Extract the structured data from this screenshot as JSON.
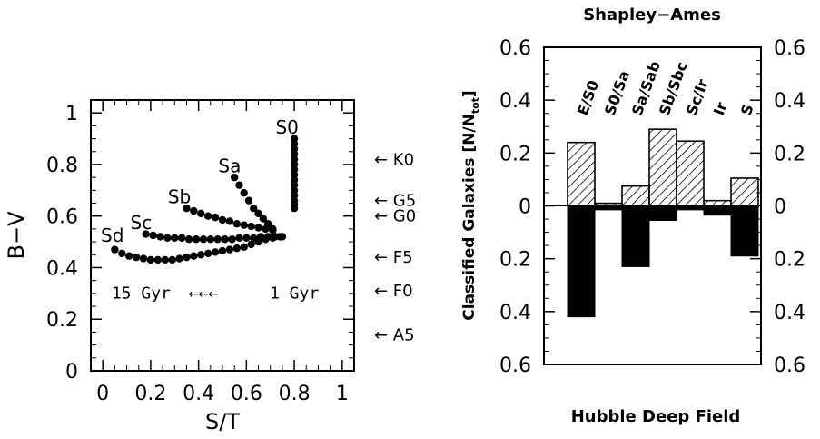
{
  "chart_data": [
    {
      "type": "scatter",
      "xlabel": "S/T",
      "ylabel": "B−V",
      "xlim": [
        -0.05,
        1.05
      ],
      "ylim": [
        0,
        1.05
      ],
      "x_ticks": [
        "0",
        "0.2",
        "0.4",
        "0.6",
        "0.8",
        "1"
      ],
      "y_ticks": [
        "0",
        "0.2",
        "0.4",
        "0.6",
        "0.8",
        "1"
      ],
      "x_tick_values": [
        0,
        0.2,
        0.4,
        0.6,
        0.8,
        1
      ],
      "y_tick_values": [
        0,
        0.2,
        0.4,
        0.6,
        0.8,
        1
      ],
      "series": [
        {
          "name": "S0",
          "x": [
            0.8,
            0.8,
            0.8,
            0.8,
            0.8,
            0.8,
            0.8,
            0.8,
            0.8,
            0.8,
            0.8,
            0.8,
            0.8,
            0.8,
            0.8
          ],
          "y": [
            0.9,
            0.88,
            0.86,
            0.84,
            0.82,
            0.8,
            0.78,
            0.76,
            0.74,
            0.72,
            0.7,
            0.68,
            0.66,
            0.645,
            0.63
          ]
        },
        {
          "name": "Sa",
          "x": [
            0.55,
            0.57,
            0.59,
            0.61,
            0.63,
            0.65,
            0.67,
            0.69,
            0.71
          ],
          "y": [
            0.75,
            0.72,
            0.69,
            0.66,
            0.63,
            0.61,
            0.59,
            0.57,
            0.55
          ]
        },
        {
          "name": "Sb",
          "x": [
            0.35,
            0.38,
            0.41,
            0.44,
            0.47,
            0.5,
            0.53,
            0.56,
            0.59,
            0.62,
            0.65,
            0.68,
            0.71
          ],
          "y": [
            0.63,
            0.62,
            0.61,
            0.6,
            0.595,
            0.585,
            0.58,
            0.57,
            0.565,
            0.56,
            0.555,
            0.55,
            0.545
          ]
        },
        {
          "name": "Sc",
          "x": [
            0.18,
            0.21,
            0.24,
            0.27,
            0.3,
            0.33,
            0.36,
            0.39,
            0.42,
            0.45,
            0.48,
            0.51,
            0.54,
            0.57,
            0.6,
            0.63,
            0.66,
            0.69,
            0.72,
            0.75
          ],
          "y": [
            0.53,
            0.525,
            0.52,
            0.515,
            0.515,
            0.515,
            0.51,
            0.51,
            0.51,
            0.51,
            0.51,
            0.51,
            0.51,
            0.515,
            0.515,
            0.515,
            0.52,
            0.52,
            0.52,
            0.52
          ]
        },
        {
          "name": "Sd",
          "x": [
            0.05,
            0.08,
            0.11,
            0.14,
            0.17,
            0.2,
            0.23,
            0.26,
            0.29,
            0.32,
            0.35,
            0.38,
            0.41,
            0.44,
            0.47,
            0.5,
            0.53,
            0.56,
            0.59,
            0.62,
            0.65,
            0.68,
            0.71,
            0.74
          ],
          "y": [
            0.47,
            0.455,
            0.445,
            0.44,
            0.435,
            0.43,
            0.43,
            0.43,
            0.43,
            0.435,
            0.44,
            0.445,
            0.45,
            0.455,
            0.46,
            0.465,
            0.47,
            0.475,
            0.48,
            0.49,
            0.5,
            0.51,
            0.515,
            0.52
          ]
        }
      ],
      "annotations": [
        {
          "text": "S0",
          "x": 0.77,
          "y": 0.92
        },
        {
          "text": "Sa",
          "x": 0.53,
          "y": 0.77
        },
        {
          "text": "Sb",
          "x": 0.32,
          "y": 0.65
        },
        {
          "text": "Sc",
          "x": 0.16,
          "y": 0.55
        },
        {
          "text": "Sd",
          "x": 0.04,
          "y": 0.5
        },
        {
          "text": "15 Gyr",
          "x": 0.16,
          "y": 0.28
        },
        {
          "text": "←←←",
          "x": 0.42,
          "y": 0.28
        },
        {
          "text": "1 Gyr",
          "x": 0.8,
          "y": 0.28
        }
      ],
      "right_markers": [
        {
          "text": "← K0",
          "y": 0.82
        },
        {
          "text": "← G5",
          "y": 0.66
        },
        {
          "text": "← G0",
          "y": 0.6
        },
        {
          "text": "← F5",
          "y": 0.44
        },
        {
          "text": "← F0",
          "y": 0.31
        },
        {
          "text": "← A5",
          "y": 0.14
        }
      ]
    },
    {
      "type": "bar",
      "title": "Shapley−Ames",
      "xlabel": "Hubble Deep Field",
      "ylabel": "Classified Galaxies [N/N",
      "ylabel_sub": "tot",
      "ylabel_close": "]",
      "ylim": [
        -0.6,
        0.6
      ],
      "y_ticks_left": [
        "0.6",
        "0.4",
        "0.2",
        "0",
        "0.2",
        "0.4",
        "0.6"
      ],
      "y_ticks_right": [
        "0.6",
        "0.4",
        "0.2",
        "0",
        "0.2",
        "0.4",
        "0.6"
      ],
      "y_tick_values": [
        0.6,
        0.4,
        0.2,
        0,
        -0.2,
        -0.4,
        -0.6
      ],
      "categories": [
        "E/S0",
        "S0/Sa",
        "Sa/Sab",
        "Sb/Sbc",
        "Sc/Ir",
        "Ir",
        "S"
      ],
      "category_widths": [
        1,
        1,
        1,
        1,
        1,
        1,
        1
      ],
      "series": [
        {
          "name": "Shapley−Ames",
          "values": [
            0.24,
            0.01,
            0.075,
            0.29,
            0.245,
            0.02,
            0.105
          ],
          "fill": "hatched"
        },
        {
          "name": "Hubble Deep Field",
          "values": [
            -0.42,
            -0.015,
            -0.23,
            -0.055,
            -0.015,
            -0.035,
            -0.19
          ],
          "fill": "#000000"
        }
      ]
    }
  ]
}
